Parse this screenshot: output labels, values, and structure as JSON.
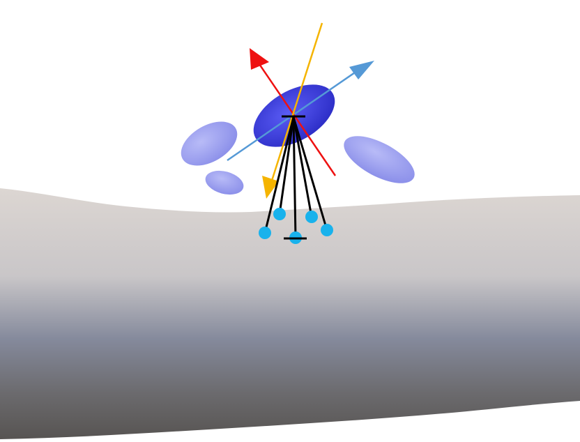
{
  "scene": {
    "surface": {
      "colors": {
        "top": "#d6d0cc",
        "mid": "#8a90a3",
        "bottom": "#5a5755"
      }
    },
    "ellipsoids": {
      "main_color": "#3f3fe0",
      "side_color": "#a0a4f2"
    },
    "axes": [
      {
        "name": "red-axis",
        "color": "#ee1111"
      },
      {
        "name": "blue-axis",
        "color": "#5599d6"
      },
      {
        "name": "orange-axis",
        "color": "#f5b400"
      }
    ],
    "tether": {
      "line_color": "#000000",
      "anchor_color": "#19b2ec",
      "anchor_count": 5
    }
  }
}
